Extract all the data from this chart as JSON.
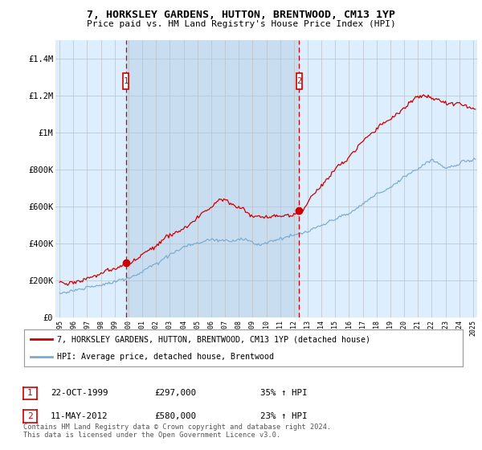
{
  "title1": "7, HORKSLEY GARDENS, HUTTON, BRENTWOOD, CM13 1YP",
  "title2": "Price paid vs. HM Land Registry's House Price Index (HPI)",
  "plot_bg": "#ddeeff",
  "shade_bg": "#c8ddf0",
  "line1_color": "#cc0000",
  "line2_color": "#7aaad0",
  "ylim": [
    0,
    1400000
  ],
  "yticks": [
    0,
    200000,
    400000,
    600000,
    800000,
    1000000,
    1200000,
    1400000
  ],
  "ytick_labels": [
    "£0",
    "£200K",
    "£400K",
    "£600K",
    "£800K",
    "£1M",
    "£1.2M",
    "£1.4M"
  ],
  "sale1_date": "22-OCT-1999",
  "sale1_price": 297000,
  "sale1_label": "35% ↑ HPI",
  "sale2_date": "11-MAY-2012",
  "sale2_price": 580000,
  "sale2_label": "23% ↑ HPI",
  "legend1": "7, HORKSLEY GARDENS, HUTTON, BRENTWOOD, CM13 1YP (detached house)",
  "legend2": "HPI: Average price, detached house, Brentwood",
  "footnote": "Contains HM Land Registry data © Crown copyright and database right 2024.\nThis data is licensed under the Open Government Licence v3.0.",
  "sale1_x": 1999.8,
  "sale2_x": 2012.37,
  "xmin": 1994.7,
  "xmax": 2025.3
}
